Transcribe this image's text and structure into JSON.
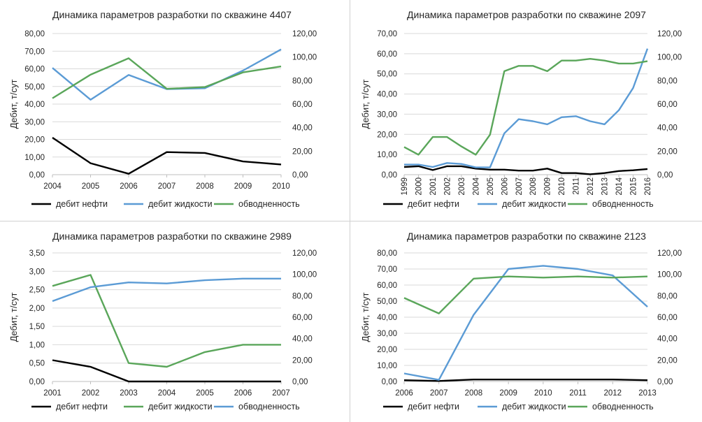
{
  "colors": {
    "oil": "#000000",
    "liquid": "#5b9bd5",
    "water": "#5aa65a",
    "grid": "#d9d9d9",
    "axis": "#bfbfbf",
    "divider": "#d0d0d0"
  },
  "chart_data": [
    {
      "type": "line",
      "title": "Динамика параметров разработки по скважине 4407",
      "ylabel": "Дебит, т/сут",
      "x": [
        "2004",
        "2005",
        "2006",
        "2007",
        "2008",
        "2009",
        "2010"
      ],
      "ylim": [
        0,
        80
      ],
      "ylim_right": [
        0,
        120
      ],
      "yticks": [
        "0,00",
        "10,00",
        "20,00",
        "30,00",
        "40,00",
        "50,00",
        "60,00",
        "70,00",
        "80,00"
      ],
      "yticks_right": [
        "0,00",
        "20,00",
        "40,00",
        "60,00",
        "80,00",
        "100,00",
        "120,00"
      ],
      "series": [
        {
          "name": "дебит  нефти",
          "axis": "left",
          "color_key": "oil",
          "values": [
            21,
            6.5,
            0.5,
            12.8,
            12.3,
            7.5,
            5.8
          ]
        },
        {
          "name": "дебит жидкости",
          "axis": "left",
          "color_key": "liquid",
          "values": [
            60.5,
            42.5,
            56.5,
            48.5,
            49,
            59,
            71
          ]
        },
        {
          "name": "обводненность",
          "axis": "right",
          "color_key": "water",
          "values": [
            65,
            85,
            99,
            73,
            74.5,
            87,
            92
          ]
        }
      ],
      "legend": [
        "дебит  нефти",
        "дебит жидкости",
        "обводненность"
      ]
    },
    {
      "type": "line",
      "title": "Динамика параметров разработки по скважине 2097",
      "ylabel": "Дебит, т/сут",
      "x": [
        "1999",
        "2000",
        "2001",
        "2002",
        "2003",
        "2004",
        "2005",
        "2006",
        "2007",
        "2008",
        "2009",
        "2010",
        "2011",
        "2012",
        "2013",
        "2014",
        "2015",
        "2016"
      ],
      "ylim": [
        0,
        70
      ],
      "ylim_right": [
        0,
        120
      ],
      "yticks": [
        "0,00",
        "10,00",
        "20,00",
        "30,00",
        "40,00",
        "50,00",
        "60,00",
        "70,00"
      ],
      "yticks_right": [
        "0,00",
        "20,00",
        "40,00",
        "60,00",
        "80,00",
        "100,00",
        "120,00"
      ],
      "series": [
        {
          "name": "дебит  нефти",
          "axis": "left",
          "color_key": "oil",
          "values": [
            3.8,
            4.2,
            2.3,
            4.2,
            4.2,
            3,
            2.5,
            2.5,
            2,
            2,
            3,
            0.8,
            0.8,
            0.2,
            0.8,
            1.8,
            2.2,
            2.8
          ]
        },
        {
          "name": "дебит жидкости",
          "axis": "left",
          "color_key": "liquid",
          "values": [
            5,
            5,
            3.8,
            5.8,
            5.3,
            3.6,
            3.6,
            20.5,
            27.5,
            26.5,
            25,
            28.5,
            29,
            26.5,
            25,
            32,
            43,
            62.5
          ]
        },
        {
          "name": "обводненность",
          "axis": "right",
          "color_key": "water",
          "values": [
            23.5,
            17,
            32,
            32,
            24,
            17,
            34,
            88,
            92.5,
            92.5,
            88,
            97,
            97,
            98.5,
            97,
            94.5,
            94.5,
            96.5
          ]
        }
      ],
      "legend": [
        "дебит  нефти",
        "дебит жидкости",
        "обводненность"
      ]
    },
    {
      "type": "line",
      "title": "Динамика параметров разработки по скважине 2989",
      "ylabel": "Дебит, т/сут",
      "x": [
        "2001",
        "2002",
        "2003",
        "2004",
        "2005",
        "2006",
        "2007"
      ],
      "ylim": [
        0,
        3.5
      ],
      "ylim_right": [
        0,
        120
      ],
      "yticks": [
        "0,00",
        "0,50",
        "1,00",
        "1,50",
        "2,00",
        "2,50",
        "3,00",
        "3,50"
      ],
      "yticks_right": [
        "0,00",
        "20,00",
        "40,00",
        "60,00",
        "80,00",
        "100,00",
        "120,00"
      ],
      "series": [
        {
          "name": "дебит  нефти",
          "axis": "left",
          "color_key": "oil",
          "values": [
            0.58,
            0.4,
            0,
            0,
            0,
            0,
            0
          ]
        },
        {
          "name": "дебит жидкости",
          "axis": "left",
          "color_key": "water",
          "values": [
            2.6,
            2.9,
            0.5,
            0.4,
            0.8,
            1.0,
            1.0
          ]
        },
        {
          "name": "обводненность",
          "axis": "right",
          "color_key": "liquid",
          "values": [
            75,
            88,
            92.5,
            91.5,
            94.5,
            96,
            96
          ]
        }
      ],
      "legend": [
        "дебит  нефти",
        "дебит жидкости",
        "обводненность"
      ]
    },
    {
      "type": "line",
      "title": "Динамика параметров разработки по скважине 2123",
      "ylabel": "Дебит, т/сут",
      "x": [
        "2006",
        "2007",
        "2008",
        "2009",
        "2010",
        "2011",
        "2012",
        "2013"
      ],
      "ylim": [
        0,
        80
      ],
      "ylim_right": [
        0,
        120
      ],
      "yticks": [
        "0,00",
        "10,00",
        "20,00",
        "30,00",
        "40,00",
        "50,00",
        "60,00",
        "70,00",
        "80,00"
      ],
      "yticks_right": [
        "0,00",
        "20,00",
        "40,00",
        "60,00",
        "80,00",
        "100,00",
        "120,00"
      ],
      "series": [
        {
          "name": "дебит  нефти",
          "axis": "left",
          "color_key": "oil",
          "values": [
            0.8,
            0.3,
            1.2,
            1.2,
            1.2,
            1.2,
            1.2,
            0.8
          ]
        },
        {
          "name": "дебит жидкости",
          "axis": "left",
          "color_key": "liquid",
          "values": [
            5,
            1,
            41.5,
            70,
            72,
            70,
            66,
            46.5
          ]
        },
        {
          "name": "обводненность",
          "axis": "right",
          "color_key": "water",
          "values": [
            78,
            63.5,
            96,
            98,
            97,
            98,
            97,
            98
          ]
        }
      ],
      "legend": [
        "дебит  нефти",
        "дебит жидкости",
        "обводненность"
      ]
    }
  ]
}
